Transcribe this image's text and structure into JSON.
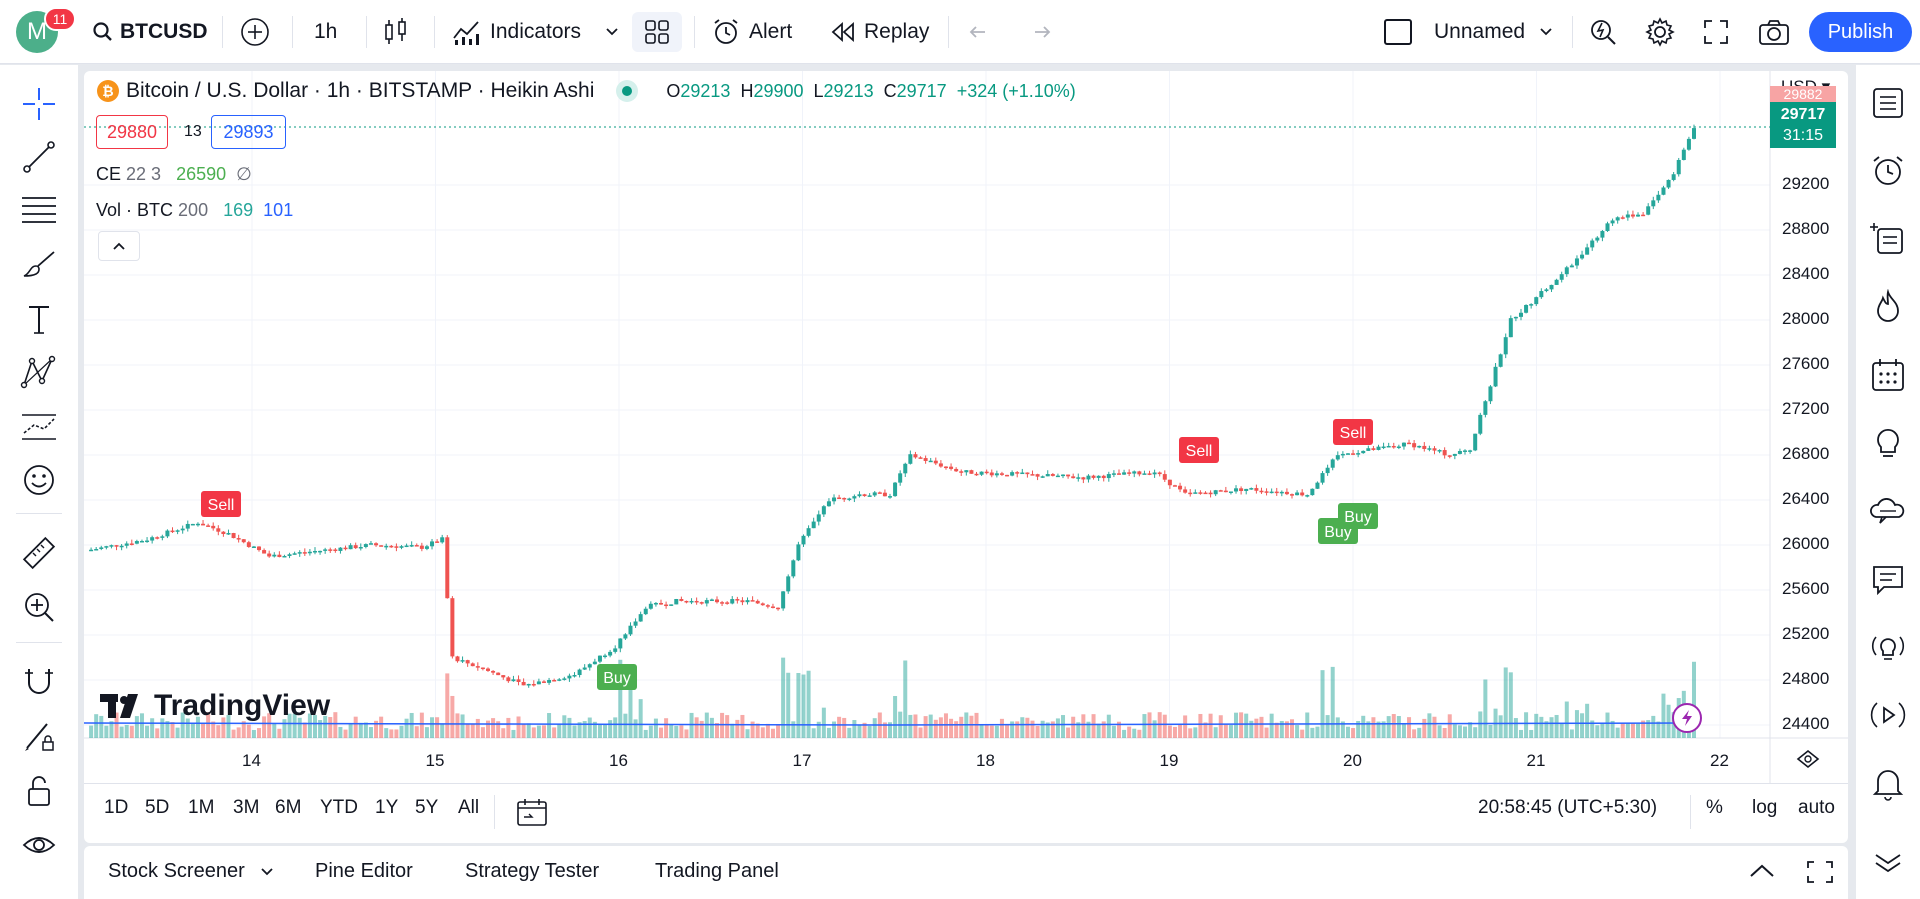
{
  "topbar": {
    "avatar_letter": "M",
    "notifications": "11",
    "symbol": "BTCUSD",
    "interval": "1h",
    "indicators_label": "Indicators",
    "alert_label": "Alert",
    "replay_label": "Replay",
    "layout_name": "Unnamed",
    "publish_label": "Publish"
  },
  "legend": {
    "title": "Bitcoin / U.S. Dollar · 1h · BITSTAMP · Heikin Ashi",
    "o_label": "O",
    "o_value": "29213",
    "h_label": "H",
    "h_value": "29900",
    "l_label": "L",
    "l_value": "29213",
    "c_label": "C",
    "c_value": "29717",
    "change": "+324 (+1.10%)",
    "sell_price": "29880",
    "spread": "13",
    "buy_price": "29893",
    "ce_name": "CE",
    "ce_params": "22 3",
    "ce_value": "26590",
    "ce_na": "∅",
    "vol_name": "Vol · BTC",
    "vol_param": "200",
    "vol_value1": "169",
    "vol_value2": "101"
  },
  "price_axis": {
    "currency": "USD",
    "labels": [
      "29200",
      "28800",
      "28400",
      "28000",
      "27600",
      "27200",
      "26800",
      "26400",
      "26000",
      "25600",
      "25200",
      "24800",
      "24400"
    ],
    "current_price": "29717",
    "countdown": "31:15",
    "top_hidden": "29882"
  },
  "time_axis": {
    "labels": [
      "14",
      "15",
      "16",
      "17",
      "18",
      "19",
      "20",
      "21",
      "22"
    ]
  },
  "signals": {
    "sell": "Sell",
    "buy": "Buy"
  },
  "watermark": "TradingView",
  "bottom_toolbar": {
    "ranges": [
      "1D",
      "5D",
      "1M",
      "3M",
      "6M",
      "YTD",
      "1Y",
      "5Y",
      "All"
    ],
    "clock": "20:58:45 (UTC+5:30)",
    "percent": "%",
    "log": "log",
    "auto": "auto"
  },
  "panels": {
    "tabs": [
      "Stock Screener",
      "Pine Editor",
      "Strategy Tester",
      "Trading Panel"
    ]
  },
  "colors": {
    "up": "#26a69a",
    "down": "#ef5350",
    "accent": "#2962ff",
    "buy_signal": "#4caf50",
    "sell_signal": "#f23645"
  }
}
